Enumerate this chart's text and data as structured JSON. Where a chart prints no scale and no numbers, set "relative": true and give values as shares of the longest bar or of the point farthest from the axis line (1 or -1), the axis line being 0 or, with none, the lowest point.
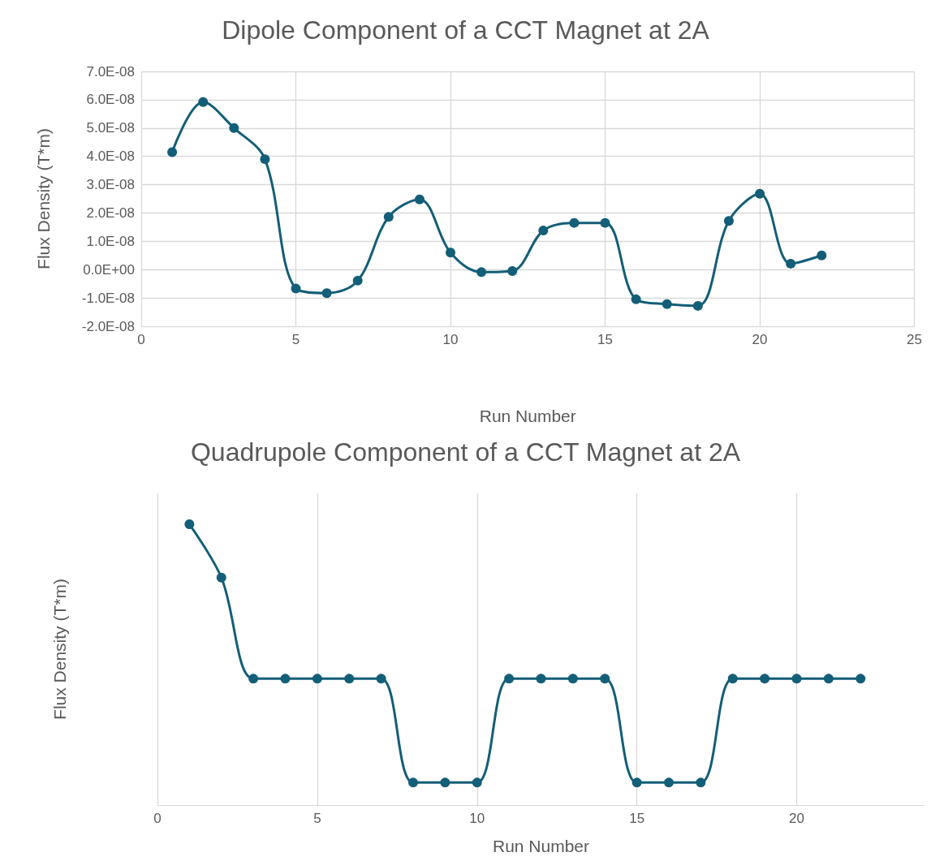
{
  "chart_data": [
    {
      "type": "line",
      "title": "Dipole Component of a CCT Magnet at 2A",
      "xlabel": "Run Number",
      "ylabel": "Flux Density (T*m)",
      "x": [
        1,
        2,
        3,
        4,
        5,
        6,
        7,
        8,
        9,
        10,
        11,
        12,
        13,
        14,
        15,
        16,
        17,
        18,
        19,
        20,
        21,
        22
      ],
      "series": [
        {
          "color": "#135e78",
          "values": [
            4.15e-08,
            5.92e-08,
            5e-08,
            3.9e-08,
            -6.7e-09,
            -8.3e-09,
            -3.9e-09,
            1.86e-08,
            2.48e-08,
            6e-09,
            -9e-10,
            -5e-10,
            1.38e-08,
            1.65e-08,
            1.65e-08,
            -1.05e-08,
            -1.22e-08,
            -1.28e-08,
            1.72e-08,
            2.68e-08,
            2.1e-09,
            5e-09
          ]
        }
      ],
      "xlim": [
        0,
        25
      ],
      "xticks": [
        0,
        5,
        10,
        15,
        20,
        25
      ],
      "ylim": [
        -2e-08,
        7e-08
      ],
      "yticks": [
        {
          "value": -2e-08,
          "label": "-2.0E-08"
        },
        {
          "value": -1e-08,
          "label": "-1.0E-08"
        },
        {
          "value": 0,
          "label": "0.0E+00"
        },
        {
          "value": 1e-08,
          "label": "1.0E-08"
        },
        {
          "value": 2e-08,
          "label": "2.0E-08"
        },
        {
          "value": 3e-08,
          "label": "3.0E-08"
        },
        {
          "value": 4e-08,
          "label": "4.0E-08"
        },
        {
          "value": 5e-08,
          "label": "5.0E-08"
        },
        {
          "value": 6e-08,
          "label": "6.0E-08"
        },
        {
          "value": 7e-08,
          "label": "7.0E-08"
        }
      ],
      "grid": true,
      "marker": "circle"
    },
    {
      "type": "line",
      "title": "Quadrupole Component of a CCT Magnet at 2A",
      "xlabel": "Run Number",
      "ylabel": "Flux Density (T*m)",
      "relative": true,
      "x": [
        1,
        2,
        3,
        4,
        5,
        6,
        7,
        8,
        9,
        10,
        11,
        12,
        13,
        14,
        15,
        16,
        17,
        18,
        19,
        20,
        21,
        22
      ],
      "series": [
        {
          "color": "#135e78",
          "values": [
            1,
            0.81,
            0.45,
            0.45,
            0.45,
            0.45,
            0.45,
            0.08,
            0.08,
            0.08,
            0.45,
            0.45,
            0.45,
            0.45,
            0.08,
            0.08,
            0.08,
            0.45,
            0.45,
            0.45,
            0.45,
            0.45
          ]
        }
      ],
      "xlim": [
        0,
        24
      ],
      "xticks": [
        0,
        5,
        10,
        15,
        20
      ],
      "grid": true,
      "marker": "circle"
    }
  ]
}
